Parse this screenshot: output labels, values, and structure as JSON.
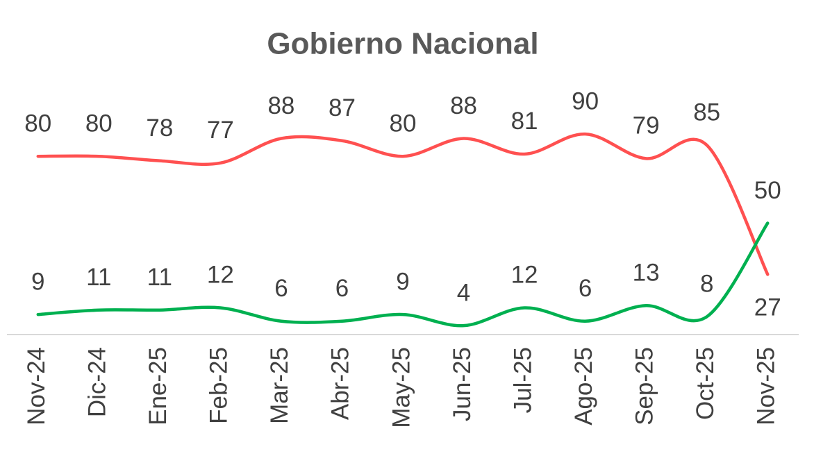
{
  "chart_data": {
    "type": "line",
    "title": "Gobierno Nacional",
    "categories": [
      "Nov-24",
      "Dic-24",
      "Ene-25",
      "Feb-25",
      "Mar-25",
      "Abr-25",
      "May-25",
      "Jun-25",
      "Jul-25",
      "Ago-25",
      "Sep-25",
      "Oct-25",
      "Nov-25"
    ],
    "series": [
      {
        "color": "#ff5050",
        "values": [
          80,
          80,
          78,
          77,
          88,
          87,
          80,
          88,
          81,
          90,
          79,
          85,
          27
        ]
      },
      {
        "color": "#00b050",
        "values": [
          9,
          11,
          11,
          12,
          6,
          6,
          9,
          4,
          12,
          6,
          13,
          8,
          50
        ]
      }
    ],
    "ylim": [
      0,
      100
    ],
    "smooth": true
  }
}
